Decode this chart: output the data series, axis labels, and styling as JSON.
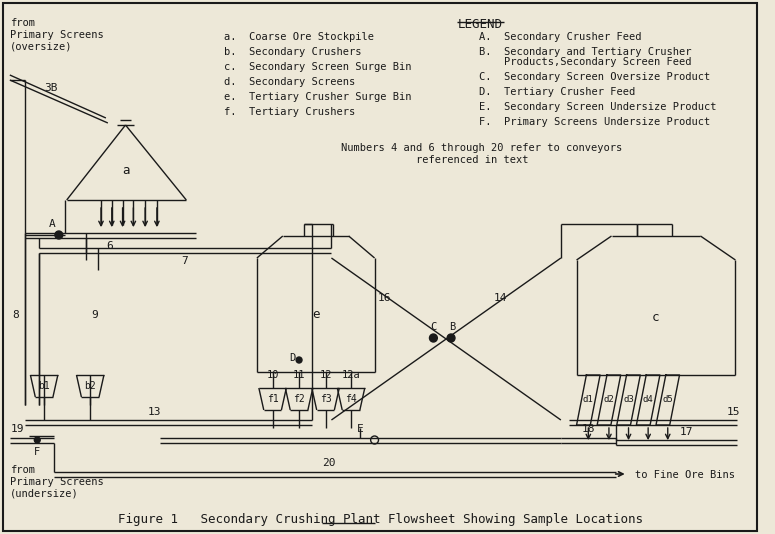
{
  "title": "Figure 1   Secondary Crushing Plant Flowsheet Showing Sample Locations",
  "bg_color": "#ede8d8",
  "line_color": "#1a1a1a",
  "legend_title": "LEGEND",
  "from_top": "from\nPrimary Screens\n(oversize)",
  "from_bottom": "from\nPrimary Screens\n(undersize)",
  "to_fine": "to Fine Ore Bins",
  "legend_left": [
    "a.  Coarse Ore Stockpile",
    "b.  Secondary Crushers",
    "c.  Secondary Screen Surge Bin",
    "d.  Secondary Screens",
    "e.  Tertiary Crusher Surge Bin",
    "f.  Tertiary Crushers"
  ],
  "legend_right_line1": "A.  Secondary Crusher Feed",
  "legend_right_line2a": "B.  Secondary and Tertiary Crusher",
  "legend_right_line2b": "    Products,Secondary Screen Feed",
  "legend_right_line3": "C.  Secondary Screen Oversize Product",
  "legend_right_line4": "D.  Tertiary Crusher Feed",
  "legend_right_line5": "E.  Secondary Screen Undersize Product",
  "legend_right_line6": "F.  Primary Screens Undersize Product",
  "note_line1": "Numbers 4 and 6 through 20 refer to conveyors",
  "note_line2": "            referenced in text"
}
